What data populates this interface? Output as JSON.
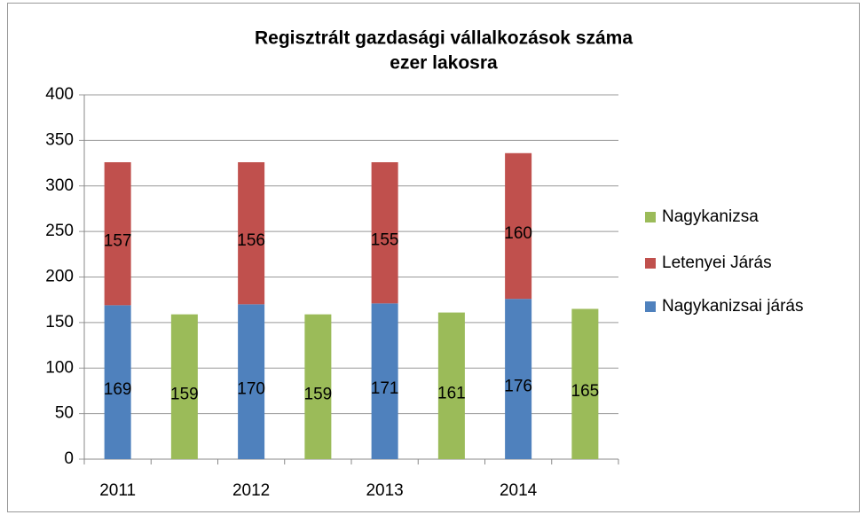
{
  "chart_data": {
    "type": "bar",
    "stacked": true,
    "title": [
      "Regisztrált gazdasági vállalkozások száma",
      "ezer lakosra"
    ],
    "categories": [
      "2011",
      null,
      "2012",
      null,
      "2013",
      null,
      "2014",
      null
    ],
    "series": [
      {
        "name": "Nagykanizsai járás",
        "color": "#4f81bd",
        "values": [
          169,
          null,
          170,
          null,
          171,
          null,
          176,
          null
        ]
      },
      {
        "name": "Letenyei Járás",
        "color": "#c0504d",
        "values": [
          157,
          null,
          156,
          null,
          155,
          null,
          160,
          null
        ]
      },
      {
        "name": "Nagykanizsa",
        "color": "#9bbb59",
        "values": [
          null,
          159,
          null,
          159,
          null,
          161,
          null,
          165
        ]
      }
    ],
    "ylim": [
      0,
      400
    ],
    "yticks": [
      0,
      50,
      100,
      150,
      200,
      250,
      300,
      350,
      400
    ],
    "grid": true,
    "legend": "right"
  }
}
